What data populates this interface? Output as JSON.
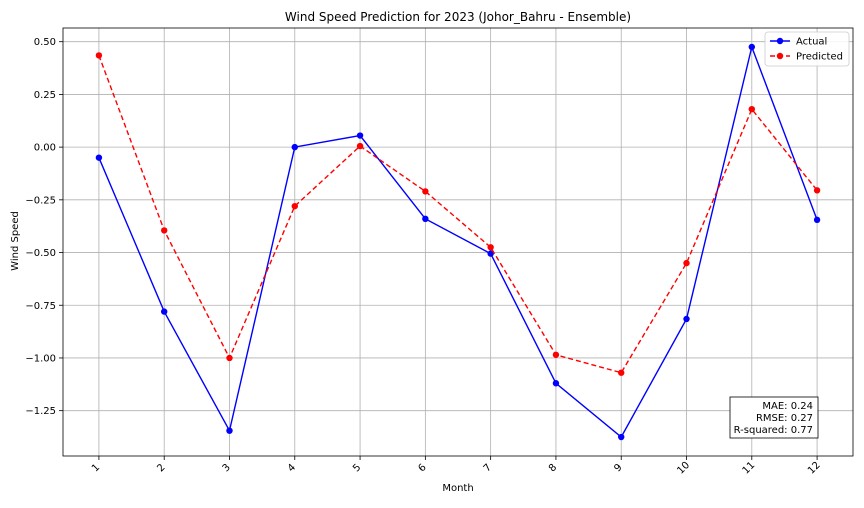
{
  "chart_data": {
    "type": "line",
    "title": "Wind Speed Prediction for 2023 (Johor_Bahru - Ensemble)",
    "xlabel": "Month",
    "ylabel": "Wind Speed",
    "x": [
      1,
      2,
      3,
      4,
      5,
      6,
      7,
      8,
      9,
      10,
      11,
      12
    ],
    "x_tick_labels": [
      "1",
      "2",
      "3",
      "4",
      "5",
      "6",
      "7",
      "8",
      "9",
      "10",
      "11",
      "12"
    ],
    "y_ticks": [
      0.5,
      0.25,
      0.0,
      -0.25,
      -0.5,
      -0.75,
      -1.0,
      -1.25
    ],
    "y_tick_labels": [
      "0.50",
      "0.25",
      "0.00",
      "−0.25",
      "−0.50",
      "−0.75",
      "−1.00",
      "−1.25"
    ],
    "xlim": [
      0.45,
      12.55
    ],
    "ylim": [
      -1.465,
      0.565
    ],
    "grid": true,
    "legend_position": "top-right",
    "series": [
      {
        "name": "Actual",
        "color": "#0000ff",
        "linestyle": "solid",
        "marker": "circle",
        "values": [
          -0.05,
          -0.78,
          -1.345,
          0.0,
          0.055,
          -0.34,
          -0.505,
          -1.12,
          -1.375,
          -0.815,
          0.475,
          -0.345
        ]
      },
      {
        "name": "Predicted",
        "color": "#ff0000",
        "linestyle": "dashed",
        "marker": "circle",
        "values": [
          0.435,
          -0.395,
          -1.0,
          -0.28,
          0.005,
          -0.21,
          -0.475,
          -0.985,
          -1.07,
          -0.55,
          0.18,
          -0.205
        ]
      }
    ],
    "annotations": [
      {
        "id": "metrics",
        "lines": [
          "MAE: 0.24",
          "RMSE: 0.27",
          "R-squared: 0.77"
        ],
        "position": "bottom-right"
      }
    ]
  }
}
